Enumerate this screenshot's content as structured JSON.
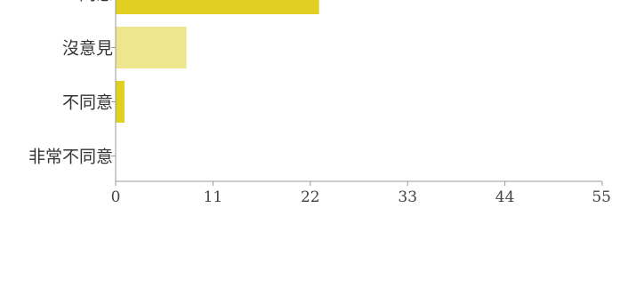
{
  "chart_data": {
    "type": "bar",
    "orientation": "horizontal",
    "categories": [
      "同意",
      "沒意見",
      "不同意",
      "非常不同意"
    ],
    "values": [
      23,
      8,
      1,
      0
    ],
    "colors": [
      "#e1cf22",
      "#ede68c",
      "#e1cf22",
      "#e1cf22"
    ],
    "x_ticks": [
      "0",
      "11",
      "22",
      "33",
      "44",
      "55"
    ],
    "xlim": [
      0,
      55
    ],
    "grid": false,
    "legend": "none"
  }
}
